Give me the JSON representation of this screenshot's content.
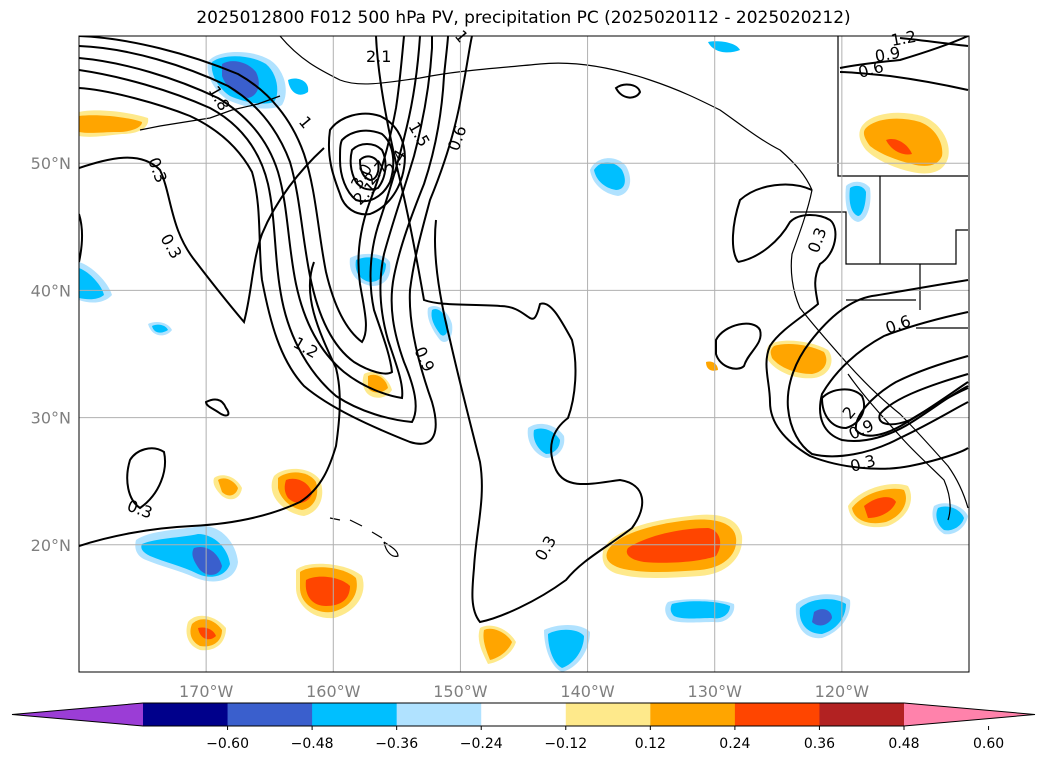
{
  "title": "2025012800 F012 500 hPa PV, precipitation PC (2025020112 - 2025020212)",
  "chart_data": {
    "type": "map",
    "title": "2025012800 F012 500 hPa PV, precipitation PC (2025020112 - 2025020212)",
    "x_ticks": [
      "170°W",
      "160°W",
      "150°W",
      "140°W",
      "130°W",
      "120°W"
    ],
    "x_tick_values": [
      -170,
      -160,
      -150,
      -140,
      -130,
      -120
    ],
    "y_ticks": [
      "50°N",
      "40°N",
      "30°N",
      "20°N"
    ],
    "y_tick_values": [
      50,
      40,
      30,
      20
    ],
    "lon_range": [
      -180,
      -110
    ],
    "lat_range": [
      10,
      60
    ],
    "grid": true,
    "contour_field": "500 hPa PV",
    "contour_labels": [
      "0.3",
      "0.3",
      "0.3",
      "0.3",
      "0.3",
      "0.3",
      "0.6",
      "0.6",
      "0.6",
      "0.9",
      "0.9",
      "0.9",
      "1.2",
      "1.2",
      "1.5",
      "1.8",
      "2.1",
      "2.1",
      "2.4",
      "2.7",
      "3.0",
      "2",
      "1",
      "1"
    ],
    "colorbar": {
      "ticks": [
        "−0.60",
        "−0.48",
        "−0.36",
        "−0.24",
        "−0.12",
        "0.12",
        "0.24",
        "0.36",
        "0.48",
        "0.60"
      ],
      "levels": [
        -0.6,
        -0.48,
        -0.36,
        -0.24,
        -0.12,
        0.12,
        0.24,
        0.36,
        0.48,
        0.6
      ],
      "colors": [
        "#9b3dd6",
        "#00008b",
        "#3a5fcd",
        "#00bfff",
        "#b0e2ff",
        "#ffffff",
        "#fee98b",
        "#ffa500",
        "#ff4500",
        "#b22222",
        "#ff82ab"
      ],
      "extend": "both"
    }
  }
}
